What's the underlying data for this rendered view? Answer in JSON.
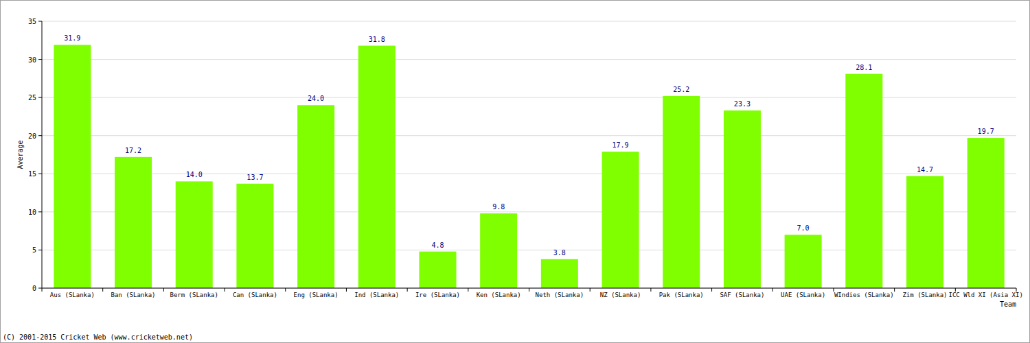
{
  "chart_data": {
    "type": "bar",
    "x_label": "Team",
    "y_label": "Average",
    "annotations": [
      "(C) 2001-2015 Cricket Web (www.cricketweb.net)"
    ],
    "categories": [
      "Aus (SLanka)",
      "Ban (SLanka)",
      "Berm (SLanka)",
      "Can (SLanka)",
      "Eng (SLanka)",
      "Ind (SLanka)",
      "Ire (SLanka)",
      "Ken (SLanka)",
      "Neth (SLanka)",
      "NZ (SLanka)",
      "Pak (SLanka)",
      "SAF (SLanka)",
      "UAE (SLanka)",
      "WIndies (SLanka)",
      "Zim (SLanka)",
      "ICC Wld XI (Asia XI)"
    ],
    "values": [
      31.9,
      17.2,
      14.0,
      13.7,
      24.0,
      31.8,
      4.8,
      9.8,
      3.8,
      17.9,
      25.2,
      23.3,
      7.0,
      28.1,
      14.7,
      19.7
    ],
    "value_labels": [
      "31.9",
      "17.2",
      "14.0",
      "13.7",
      "24.0",
      "31.8",
      "4.8",
      "9.8",
      "3.8",
      "17.9",
      "25.2",
      "23.3",
      "7.0",
      "28.1",
      "14.7",
      "19.7"
    ],
    "color": "#80ff00",
    "ylim": [
      0,
      35
    ],
    "yticks": [
      0,
      5,
      10,
      15,
      20,
      25,
      30,
      35
    ],
    "grid": true,
    "data_labels": true
  }
}
